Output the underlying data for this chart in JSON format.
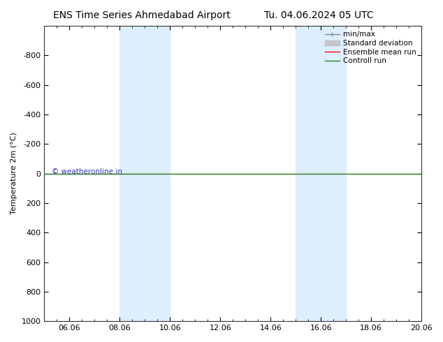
{
  "title_left": "ENS Time Series Ahmedabad Airport",
  "title_right": "Tu. 04.06.2024 05 UTC",
  "ylabel": "Temperature 2m (°C)",
  "ylim": [
    -1000,
    1000
  ],
  "yticks": [
    -800,
    -600,
    -400,
    -200,
    0,
    200,
    400,
    600,
    800,
    1000
  ],
  "xtick_labels": [
    "06.06",
    "08.06",
    "10.06",
    "12.06",
    "14.06",
    "16.06",
    "18.06",
    "20.06"
  ],
  "xtick_positions": [
    1.0,
    3.0,
    5.0,
    7.0,
    9.0,
    11.0,
    13.0,
    15.0
  ],
  "x_min": 0.0,
  "x_max": 15.0,
  "shaded_bands": [
    {
      "x_start": 3.0,
      "x_end": 5.0
    },
    {
      "x_start": 10.0,
      "x_end": 12.0
    }
  ],
  "control_run_y": 0.0,
  "ensemble_mean_y": 0.0,
  "background_color": "#ffffff",
  "shade_color": "#ddeeff",
  "control_run_color": "#228822",
  "ensemble_mean_color": "#ff0000",
  "std_dev_color": "#c8c8c8",
  "minmax_color": "#888888",
  "watermark_text": "© weatheronline.in",
  "watermark_color": "#3333bb",
  "legend_entries": [
    "min/max",
    "Standard deviation",
    "Ensemble mean run",
    "Controll run"
  ],
  "title_fontsize": 10,
  "axis_fontsize": 8,
  "tick_fontsize": 8,
  "legend_fontsize": 7.5
}
